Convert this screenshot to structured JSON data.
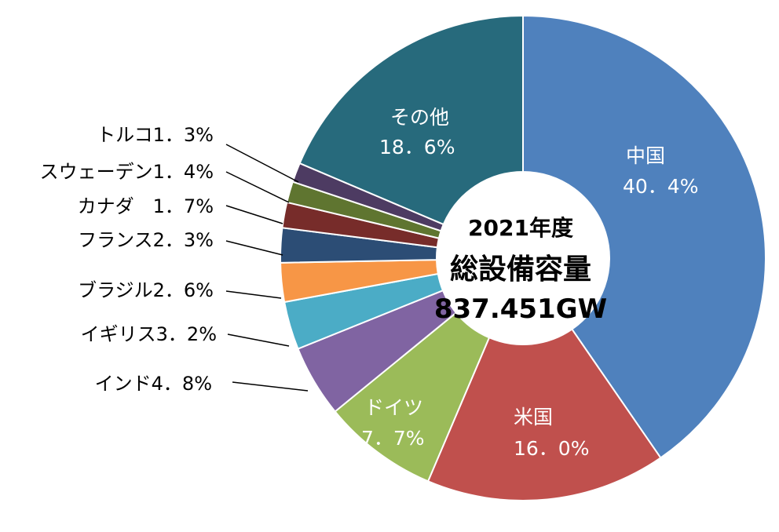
{
  "chart_data": {
    "type": "pie",
    "variant": "donut",
    "center_text": {
      "year": "2021年度",
      "title": "総設備容量",
      "value": "837.451GW"
    },
    "slices": [
      {
        "name": "中国",
        "value": 40.4,
        "value_label": "40．4%",
        "color": "#4f81bd",
        "label_position": "inside"
      },
      {
        "name": "米国",
        "value": 16.0,
        "value_label": "16．0%",
        "color": "#c0504d",
        "label_position": "inside"
      },
      {
        "name": "ドイツ",
        "value": 7.7,
        "value_label": "7．7%",
        "color": "#9bbb59",
        "label_position": "inside"
      },
      {
        "name": "インド",
        "value": 4.8,
        "value_label": "4．8%",
        "color": "#8064a2",
        "label_position": "outside",
        "label_text": "インド4．8%"
      },
      {
        "name": "イギリス",
        "value": 3.2,
        "value_label": "3．2%",
        "color": "#4bacc6",
        "label_position": "outside",
        "label_text": "イギリス3．2%"
      },
      {
        "name": "ブラジル",
        "value": 2.6,
        "value_label": "2．6%",
        "color": "#f79646",
        "label_position": "outside",
        "label_text": "ブラジル2．6%"
      },
      {
        "name": "フランス",
        "value": 2.3,
        "value_label": "2．3%",
        "color": "#2c4d75",
        "label_position": "outside",
        "label_text": "フランス2．3%"
      },
      {
        "name": "カナダ",
        "value": 1.7,
        "value_label": "1．7%",
        "color": "#772c2a",
        "label_position": "outside",
        "label_text": "カナダ　1．7%"
      },
      {
        "name": "スウェーデン",
        "value": 1.4,
        "value_label": "1．4%",
        "color": "#5f7530",
        "label_position": "outside",
        "label_text": "スウェーデン1．4%"
      },
      {
        "name": "トルコ",
        "value": 1.3,
        "value_label": "1．3%",
        "color": "#4d3b62",
        "label_position": "outside",
        "label_text": "トルコ1．3%"
      },
      {
        "name": "その他",
        "value": 18.6,
        "value_label": "18．6%",
        "color": "#276a7c",
        "label_position": "inside"
      }
    ]
  }
}
